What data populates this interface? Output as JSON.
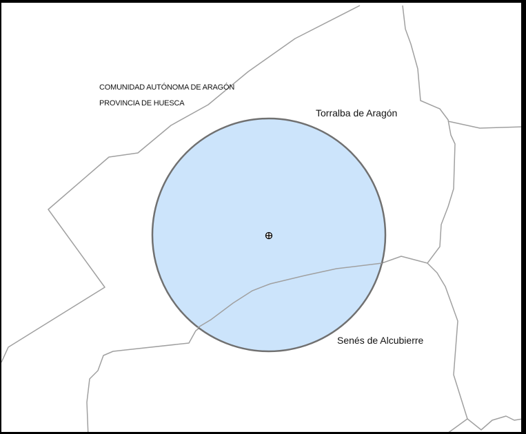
{
  "map": {
    "region_labels": {
      "community": "COMUNIDAD AUTÓNOMA DE ARAGÓN",
      "province": "PROVINCIA DE HUESCA"
    },
    "places": {
      "torralba": "Torralba de Aragón",
      "senes": "Senés de Alcubierre"
    },
    "center_marker_icon": "crosshair-circle-icon",
    "colors": {
      "buffer_fill": "#cce4fb",
      "buffer_stroke": "#707070",
      "boundary": "#a0a0a0",
      "frame": "#000000"
    }
  }
}
